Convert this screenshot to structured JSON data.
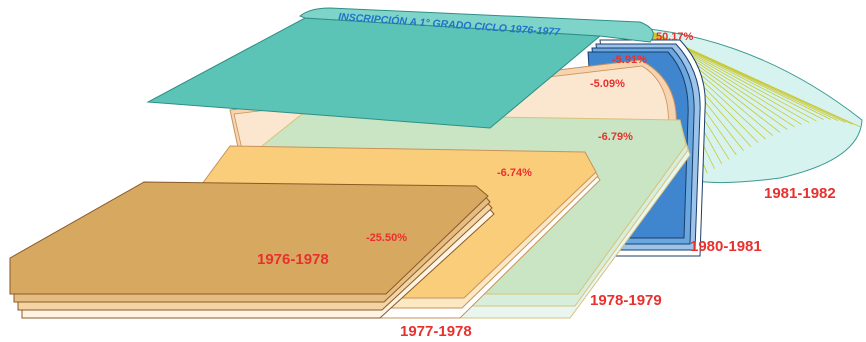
{
  "title": "INSCRIPCIÓN A 1° GRADO CICLO 1976-1977",
  "cohorts": [
    {
      "label": "1976-1978",
      "pct": "-25.50%"
    },
    {
      "label": "1977-1978",
      "pct": "-6.74%"
    },
    {
      "label": "1978-1979",
      "pct": "-6.79%"
    },
    {
      "label": "1980-1981",
      "pct": "-5.09%"
    },
    {
      "label": "1980-1981",
      "pct": "-5.91%"
    },
    {
      "label": "1981-1982",
      "pct": "50.17%"
    }
  ],
  "colors": {
    "teal": "#5cc4b7",
    "teal_dark": "#2f8f86",
    "fan": "#d7f3ef",
    "fan_lines": "#c9c93a",
    "blue": "#3f86cf",
    "green": "#c9e5c3",
    "peach": "#f7d3b0",
    "orange": "#f9cd7a",
    "brown": "#d7a860",
    "label_red": "#e8312f",
    "title_blue": "#1f74c8"
  }
}
